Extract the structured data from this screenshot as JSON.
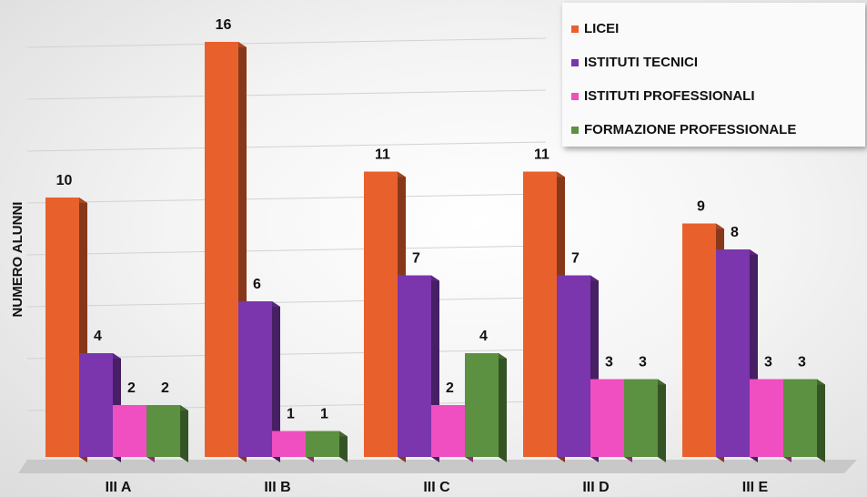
{
  "chart_data": {
    "type": "bar",
    "ylabel": "NUMERO ALUNNI",
    "xlabel": "",
    "ylim": [
      0,
      16
    ],
    "categories": [
      "III A",
      "III B",
      "III C",
      "III D",
      "III E"
    ],
    "series": [
      {
        "name": "LICEI",
        "color": "#e8612c",
        "values": [
          10,
          16,
          11,
          11,
          9
        ]
      },
      {
        "name": "ISTITUTI TECNICI",
        "color": "#7b35ad",
        "values": [
          4,
          6,
          7,
          7,
          8
        ]
      },
      {
        "name": "ISTITUTI PROFESSIONALI",
        "color": "#ef4fc1",
        "values": [
          2,
          1,
          2,
          3,
          3
        ]
      },
      {
        "name": "FORMAZIONE PROFESSIONALE",
        "color": "#5b9140",
        "values": [
          2,
          1,
          4,
          3,
          3
        ]
      }
    ],
    "grid": true,
    "legend_position": "top-right",
    "style": "3d-columns"
  }
}
